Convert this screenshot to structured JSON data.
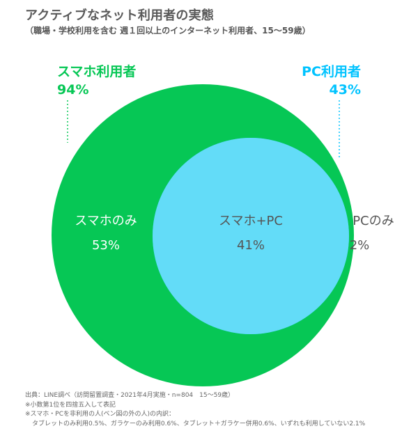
{
  "title": "アクティブなネット利用者の実態",
  "subtitle": "（職場・学校利用を含む 週１回以上のインターネット利用者、15〜59歳）",
  "colors": {
    "smartphone": "#06c755",
    "pc": "#00c3ff",
    "overlap": "#63dcf8",
    "region_text_light": "#ffffff",
    "region_text_dark": "#555555"
  },
  "chart_data": {
    "type": "venn",
    "sets": [
      {
        "name": "スマホ利用者",
        "value": "94%",
        "color": "#06c755"
      },
      {
        "name": "PC利用者",
        "value": "43%",
        "color": "#00c3ff"
      }
    ],
    "regions": [
      {
        "label": "スマホのみ",
        "value": "53%",
        "percent": 53
      },
      {
        "label": "スマホ+PC",
        "value": "41%",
        "percent": 41
      },
      {
        "label": "PCのみ",
        "value": "2%",
        "percent": 2
      }
    ]
  },
  "footnotes": {
    "source": "出典：LINE調べ（訪問留置調査・2021年4月実施・n=804　15〜59歳）",
    "rounding": "※小数第1位を四捨五入して表記",
    "outside_header": "※スマホ・PCを非利用の人(ベン図の外の人)の内訳：",
    "outside_detail": "タブレットのみ利用0.5%、ガラケーのみ利用0.6%、タブレット＋ガラケー併用0.6%、いずれも利用していない2.1%"
  }
}
